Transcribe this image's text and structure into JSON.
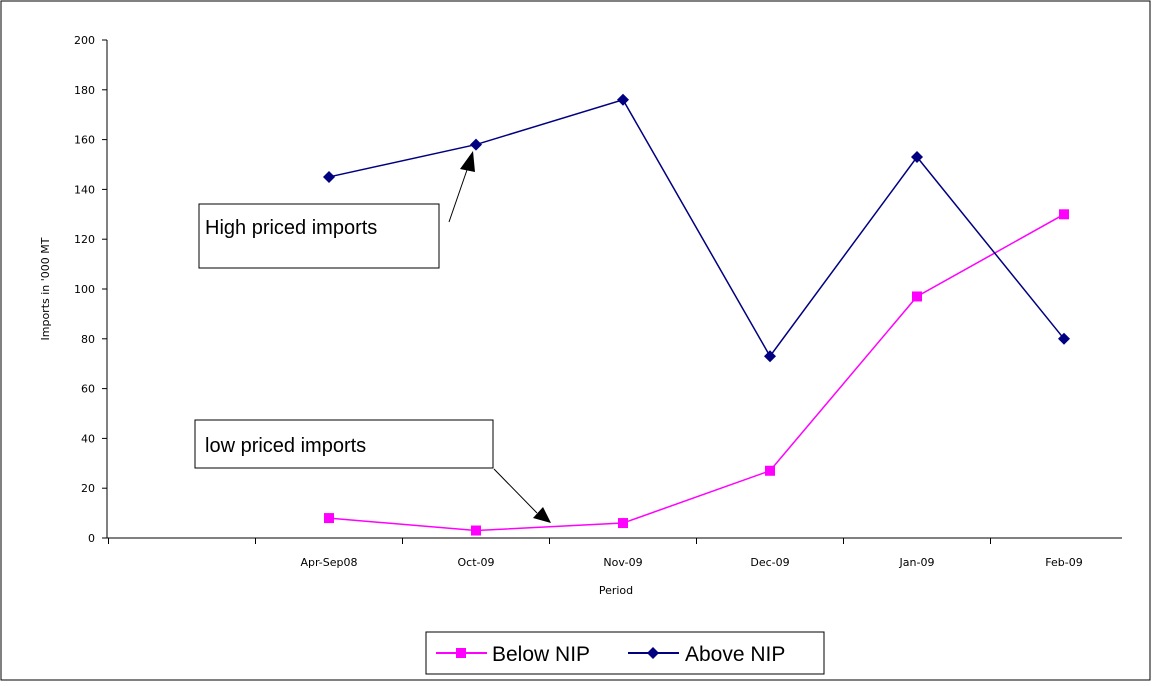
{
  "chart_data": {
    "type": "line",
    "categories": [
      "Apr-Sep08",
      "Oct-09",
      "Nov-09",
      "Dec-09",
      "Jan-09",
      "Feb-09"
    ],
    "series": [
      {
        "name": "Below NIP",
        "values": [
          8,
          3,
          6,
          27,
          97,
          130
        ],
        "color": "#ff00ff",
        "marker": "square"
      },
      {
        "name": "Above NIP",
        "values": [
          145,
          158,
          176,
          73,
          153,
          80
        ],
        "color": "#000080",
        "marker": "diamond"
      }
    ],
    "xlabel": "Period",
    "ylabel": "Imports in '000 MT",
    "ylim": [
      0,
      200
    ],
    "yticks": [
      "0",
      "20",
      "40",
      "60",
      "80",
      "100",
      "120",
      "140",
      "160",
      "180",
      "200"
    ],
    "grid": false,
    "legend_position": "bottom",
    "annotations": {
      "high": "High priced imports",
      "low": "low priced imports"
    }
  }
}
